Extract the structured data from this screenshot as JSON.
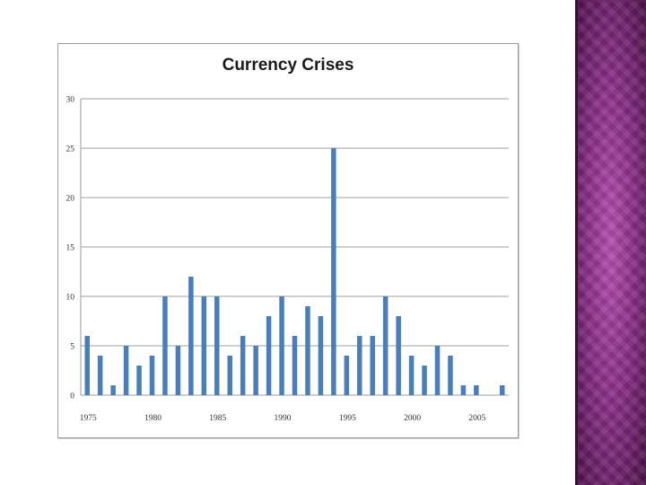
{
  "chart_data": {
    "type": "bar",
    "title": "Currency Crises",
    "xlabel": "",
    "ylabel": "",
    "ylim": [
      0,
      30
    ],
    "yticks": [
      0,
      5,
      10,
      15,
      20,
      25,
      30
    ],
    "xtick_labels": [
      "1975",
      "1980",
      "1985",
      "1990",
      "1995",
      "2000",
      "2005"
    ],
    "grid": true,
    "bar_color": "#4a7ebb",
    "years": [
      1975,
      1976,
      1977,
      1978,
      1979,
      1980,
      1981,
      1982,
      1983,
      1984,
      1985,
      1986,
      1987,
      1988,
      1989,
      1990,
      1991,
      1992,
      1993,
      1994,
      1995,
      1996,
      1997,
      1998,
      1999,
      2000,
      2001,
      2002,
      2003,
      2004,
      2005,
      2006,
      2007
    ],
    "values": [
      6,
      4,
      1,
      5,
      3,
      4,
      10,
      5,
      12,
      10,
      10,
      4,
      6,
      5,
      8,
      10,
      6,
      9,
      8,
      25,
      4,
      6,
      6,
      10,
      8,
      4,
      3,
      5,
      4,
      1,
      1,
      0,
      1
    ]
  },
  "colors": {
    "side_panel": "#8a2f88",
    "grid": "#bdbdbd"
  }
}
